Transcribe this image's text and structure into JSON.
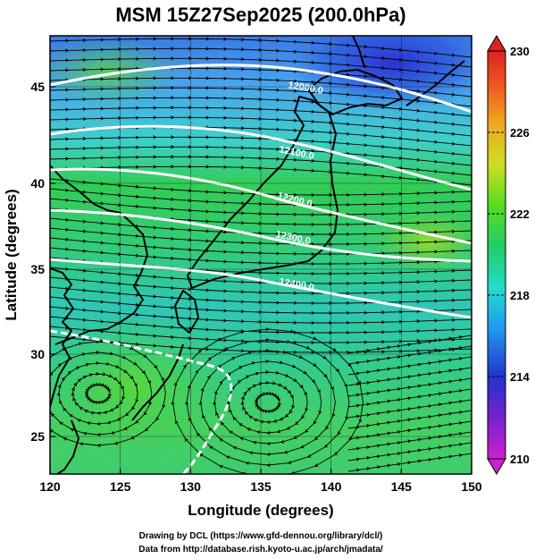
{
  "title": "MSM 15Z27Sep2025 (200.0hPa)",
  "xlabel": "Longitude (degrees)",
  "ylabel": "Latitude  (degrees)",
  "credit_line1": "Drawing by DCL (https://www.gfd-dennou.org/library/dcl/)",
  "credit_line2": "Data from http://database.rish.kyoto-u.ac.jp/arch/jmadata/",
  "colors": {
    "coastline": "#000000",
    "streamline": "#000000",
    "contour": "#ffffff"
  },
  "chart_data": {
    "type": "heatmap",
    "xlim": [
      120,
      150
    ],
    "ylim": [
      22.5,
      48
    ],
    "x_ticks": [
      "120",
      "125",
      "130",
      "135",
      "140",
      "145",
      "150"
    ],
    "y_ticks": [
      "25",
      "30",
      "35",
      "40",
      "45"
    ],
    "colorbar": {
      "min": 210,
      "max": 230,
      "tick_labels": [
        "230",
        "226",
        "222",
        "218",
        "214",
        "210"
      ]
    },
    "contours": [
      {
        "label": "12000.0",
        "value": 12000
      },
      {
        "label": "12100.0",
        "value": 12100
      },
      {
        "label": "12200.0",
        "value": 12200
      },
      {
        "label": "12300.0",
        "value": 12300
      },
      {
        "label": "12400.0",
        "value": 12400
      }
    ]
  }
}
